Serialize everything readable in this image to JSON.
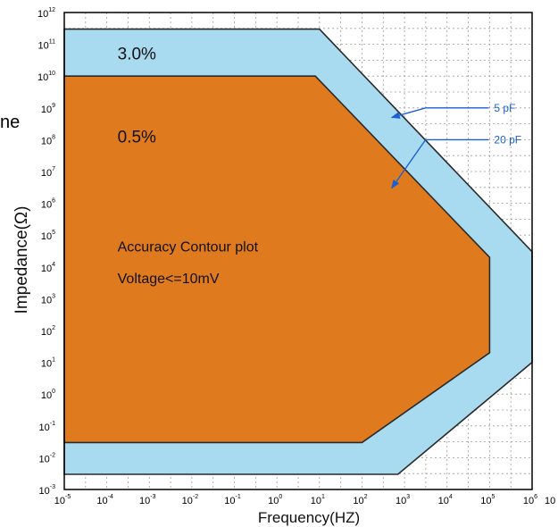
{
  "stray_text": "ne",
  "chart_data": {
    "type": "area",
    "title": "",
    "xlabel": "Frequency(HZ)",
    "ylabel": "Impedance(Ω)",
    "x_scale": "log",
    "y_scale": "log",
    "xlim": [
      1e-05,
      1000000
    ],
    "ylim": [
      0.001,
      1000000000000
    ],
    "grid": true,
    "x_ticks": [
      {
        "base": "10",
        "exp": "-5",
        "value": 1e-05
      },
      {
        "base": "10",
        "exp": "-4",
        "value": 0.0001
      },
      {
        "base": "10",
        "exp": "-3",
        "value": 0.001
      },
      {
        "base": "10",
        "exp": "-2",
        "value": 0.01
      },
      {
        "base": "10",
        "exp": "-1",
        "value": 0.1
      },
      {
        "base": "10",
        "exp": "0",
        "value": 1
      },
      {
        "base": "10",
        "exp": "1",
        "value": 10
      },
      {
        "base": "10",
        "exp": "2",
        "value": 100
      },
      {
        "base": "10",
        "exp": "3",
        "value": 1000
      },
      {
        "base": "10",
        "exp": "4",
        "value": 10000
      },
      {
        "base": "10",
        "exp": "5",
        "value": 100000
      },
      {
        "base": "10",
        "exp": "6",
        "value": 1000000
      }
    ],
    "x_tick_cut": "10",
    "y_ticks": [
      {
        "base": "10",
        "exp": "12",
        "value": 1000000000000.0
      },
      {
        "base": "10",
        "exp": "11",
        "value": 100000000000.0
      },
      {
        "base": "10",
        "exp": "10",
        "value": 10000000000.0
      },
      {
        "base": "10",
        "exp": "9",
        "value": 1000000000.0
      },
      {
        "base": "10",
        "exp": "8",
        "value": 100000000.0
      },
      {
        "base": "10",
        "exp": "7",
        "value": 10000000.0
      },
      {
        "base": "10",
        "exp": "6",
        "value": 1000000.0
      },
      {
        "base": "10",
        "exp": "5",
        "value": 100000.0
      },
      {
        "base": "10",
        "exp": "4",
        "value": 10000.0
      },
      {
        "base": "10",
        "exp": "3",
        "value": 1000.0
      },
      {
        "base": "10",
        "exp": "2",
        "value": 100.0
      },
      {
        "base": "10",
        "exp": "1",
        "value": 10.0
      },
      {
        "base": "10",
        "exp": "0",
        "value": 1
      },
      {
        "base": "10",
        "exp": "-1",
        "value": 0.1
      },
      {
        "base": "10",
        "exp": "-2",
        "value": 0.01
      },
      {
        "base": "10",
        "exp": "-3",
        "value": 0.001
      }
    ],
    "regions": [
      {
        "label": "3.0%",
        "color": "#a8daf0",
        "points": [
          [
            1e-05,
            300000000000.0
          ],
          [
            10,
            300000000000.0
          ],
          [
            1000000,
            30000.0
          ],
          [
            1000000,
            10
          ],
          [
            700,
            0.003
          ],
          [
            1e-05,
            0.003
          ]
        ]
      },
      {
        "label": "0.5%",
        "color": "#e07a1f",
        "points": [
          [
            1e-05,
            10000000000.0
          ],
          [
            8,
            10000000000.0
          ],
          [
            100000,
            20000.0
          ],
          [
            100000,
            20
          ],
          [
            100,
            0.03
          ],
          [
            1e-05,
            0.03
          ]
        ]
      }
    ],
    "region_label_positions": [
      {
        "label": "3.0%",
        "x": 0.0001,
        "y": 50000000000.0
      },
      {
        "label": "0.5%",
        "x": 0.0001,
        "y": 120000000.0
      }
    ],
    "annotations": [
      {
        "text": "Accuracy Contour plot",
        "x": 0.0001,
        "y": 40000.0
      },
      {
        "text": "Voltage<=10mV",
        "x": 0.0001,
        "y": 4000.0
      }
    ],
    "callouts": [
      {
        "text": "5 pF",
        "label_x": 40000,
        "label_y": 1000000000.0,
        "arrow_x": 500,
        "arrow_y": 500000000.0
      },
      {
        "text": "20 pF",
        "label_x": 40000,
        "label_y": 100000000.0,
        "arrow_x": 500,
        "arrow_y": 3000000.0
      }
    ],
    "callout_color": "#1a5fd1"
  }
}
